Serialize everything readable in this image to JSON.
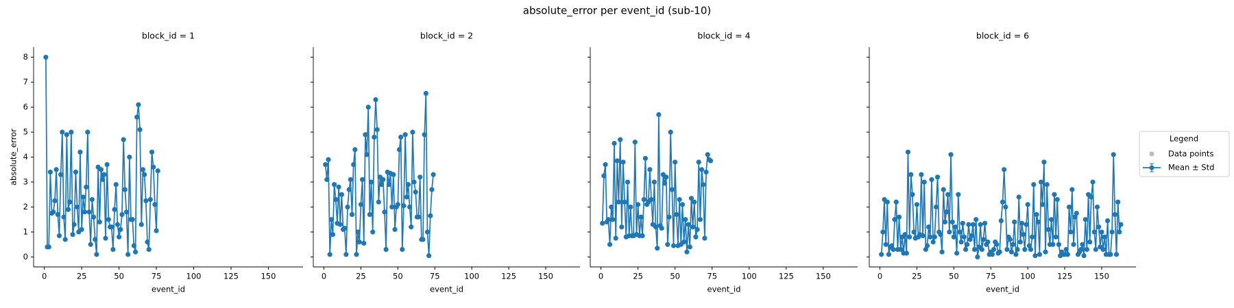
{
  "figure": {
    "title": "absolute_error per event_id (sub-10)",
    "legend": {
      "title": "Legend",
      "entries": [
        "Data points",
        "Mean ± Std"
      ],
      "corner": "right",
      "point_color": "#bbbbbb"
    }
  },
  "chart_data": [
    {
      "type": "line",
      "title": "block_id = 1",
      "xlabel": "event_id",
      "ylabel": "absolute_error",
      "x": [
        1,
        2,
        3,
        4,
        5,
        6,
        7,
        8,
        9,
        10,
        11,
        12,
        13,
        14,
        15,
        16,
        17,
        18,
        19,
        20,
        21,
        22,
        23,
        24,
        25,
        26,
        27,
        28,
        29,
        30,
        31,
        32,
        33,
        34,
        35,
        36,
        37,
        38,
        39,
        40,
        41,
        42,
        43,
        44,
        45,
        46,
        47,
        48,
        49,
        50,
        51,
        52,
        53,
        54,
        55,
        56,
        57,
        58,
        59,
        60,
        61,
        62,
        63,
        64,
        65,
        66,
        67,
        68,
        69,
        70,
        71,
        72,
        73,
        74,
        75,
        76
      ],
      "series": [
        {
          "color": "#1f77b4",
          "values": [
            8.0,
            0.4,
            0.4,
            3.4,
            1.75,
            1.8,
            2.25,
            3.5,
            1.7,
            0.85,
            3.3,
            5.0,
            1.6,
            0.7,
            4.9,
            1.9,
            2.2,
            5.0,
            0.9,
            1.3,
            3.4,
            2.0,
            1.0,
            4.2,
            1.1,
            2.4,
            1.8,
            2.8,
            5.0,
            1.8,
            0.5,
            2.3,
            1.6,
            0.7,
            0.1,
            3.6,
            1.4,
            3.5,
            3.1,
            3.3,
            0.75,
            3.7,
            1.5,
            1.2,
            1.2,
            0.3,
            1.9,
            2.9,
            1.3,
            0.8,
            1.1,
            1.7,
            4.7,
            2.7,
            1.8,
            0.1,
            4.0,
            1.5,
            1.5,
            0.45,
            0.2,
            5.6,
            6.1,
            5.1,
            1.3,
            3.5,
            3.3,
            2.25,
            0.6,
            0.3,
            2.3,
            4.2,
            3.6,
            2.1,
            1.05,
            3.45
          ]
        }
      ],
      "xlim": [
        -7.2,
        173.2
      ],
      "ylim": [
        -0.4,
        8.4
      ],
      "xticks": [
        0,
        25,
        50,
        75,
        100,
        125,
        150
      ],
      "yticks": [
        0,
        1,
        2,
        3,
        4,
        5,
        6,
        7,
        8
      ]
    },
    {
      "type": "line",
      "title": "block_id = 2",
      "xlabel": "event_id",
      "x": [
        1,
        2,
        3,
        4,
        5,
        6,
        7,
        8,
        9,
        10,
        11,
        12,
        13,
        14,
        15,
        16,
        17,
        18,
        19,
        20,
        21,
        22,
        23,
        24,
        25,
        26,
        27,
        28,
        29,
        30,
        31,
        32,
        33,
        34,
        35,
        36,
        37,
        38,
        39,
        40,
        41,
        42,
        43,
        44,
        45,
        46,
        47,
        48,
        49,
        50,
        51,
        52,
        53,
        54,
        55,
        56,
        57,
        58,
        59,
        60,
        61,
        62,
        63,
        64,
        65,
        66,
        67,
        68,
        69,
        70,
        71,
        72,
        73,
        74
      ],
      "series": [
        {
          "color": "#1f77b4",
          "values": [
            3.7,
            3.1,
            3.9,
            0.1,
            1.5,
            0.9,
            2.9,
            2.3,
            1.35,
            2.8,
            1.3,
            2.5,
            1.1,
            1.15,
            0.1,
            2.0,
            2.7,
            3.1,
            1.7,
            3.7,
            4.3,
            0.1,
            1.0,
            0.6,
            2.1,
            3.1,
            0.55,
            4.9,
            4.1,
            6.0,
            1.7,
            3.0,
            1.0,
            4.8,
            6.3,
            5.1,
            2.2,
            3.2,
            2.9,
            3.1,
            1.8,
            0.3,
            3.4,
            2.9,
            3.35,
            2.0,
            3.3,
            1.1,
            2.0,
            2.1,
            4.3,
            4.8,
            0.3,
            2.05,
            4.9,
            2.4,
            2.9,
            2.0,
            1.2,
            5.0,
            3.0,
            2.6,
            1.6,
            1.6,
            3.2,
            0.7,
            0.7,
            4.9,
            6.55,
            1.0,
            0.05,
            1.65,
            2.7,
            3.3
          ]
        }
      ],
      "xlim": [
        -7.2,
        173.2
      ],
      "ylim": [
        -0.4,
        8.4
      ],
      "xticks": [
        0,
        25,
        50,
        75,
        100,
        125,
        150
      ],
      "yticks": [
        0,
        1,
        2,
        3,
        4,
        5,
        6,
        7,
        8
      ]
    },
    {
      "type": "line",
      "title": "block_id = 4",
      "xlabel": "event_id",
      "x": [
        1,
        2,
        3,
        4,
        5,
        6,
        7,
        8,
        9,
        10,
        11,
        12,
        13,
        14,
        15,
        16,
        17,
        18,
        19,
        20,
        21,
        22,
        23,
        24,
        25,
        26,
        27,
        28,
        29,
        30,
        31,
        32,
        33,
        34,
        35,
        36,
        37,
        38,
        39,
        40,
        41,
        42,
        43,
        44,
        45,
        46,
        47,
        48,
        49,
        50,
        51,
        52,
        53,
        54,
        55,
        56,
        57,
        58,
        59,
        60,
        61,
        62,
        63,
        64,
        65,
        66,
        67,
        68,
        69,
        70,
        71,
        72,
        73,
        74
      ],
      "series": [
        {
          "color": "#1f77b4",
          "values": [
            1.35,
            3.25,
            3.7,
            1.4,
            1.5,
            0.5,
            2.0,
            1.5,
            4.55,
            0.75,
            3.85,
            2.2,
            4.7,
            1.2,
            3.8,
            2.2,
            0.8,
            3.0,
            0.85,
            2.0,
            0.85,
            0.85,
            4.6,
            0.9,
            2.1,
            0.85,
            1.6,
            0.85,
            2.3,
            3.95,
            2.1,
            2.2,
            3.5,
            2.3,
            1.3,
            3.0,
            1.2,
            0.35,
            5.7,
            1.25,
            1.15,
            3.3,
            2.95,
            3.2,
            0.5,
            1.6,
            5.0,
            2.7,
            0.45,
            3.8,
            1.7,
            0.45,
            2.3,
            0.5,
            2.1,
            0.6,
            1.5,
            0.2,
            1.3,
            0.4,
            2.35,
            1.2,
            2.2,
            0.8,
            1.1,
            3.8,
            1.5,
            3.5,
            2.9,
            0.75,
            3.4,
            4.1,
            3.9,
            3.85
          ]
        }
      ],
      "xlim": [
        -7.2,
        173.2
      ],
      "ylim": [
        -0.4,
        8.4
      ],
      "xticks": [
        0,
        25,
        50,
        75,
        100,
        125,
        150
      ],
      "yticks": [
        0,
        1,
        2,
        3,
        4,
        5,
        6,
        7,
        8
      ]
    },
    {
      "type": "line",
      "title": "block_id = 6",
      "xlabel": "event_id",
      "x": [
        1,
        2,
        3,
        4,
        5,
        6,
        7,
        8,
        9,
        10,
        11,
        12,
        13,
        14,
        15,
        16,
        17,
        18,
        19,
        20,
        21,
        22,
        23,
        24,
        25,
        26,
        27,
        28,
        29,
        30,
        31,
        32,
        33,
        34,
        35,
        36,
        37,
        38,
        39,
        40,
        41,
        42,
        43,
        44,
        45,
        46,
        47,
        48,
        49,
        50,
        51,
        52,
        53,
        54,
        55,
        56,
        57,
        58,
        59,
        60,
        61,
        62,
        63,
        64,
        65,
        66,
        67,
        68,
        69,
        70,
        71,
        72,
        73,
        74,
        75,
        76,
        77,
        78,
        79,
        80,
        81,
        82,
        83,
        84,
        85,
        86,
        87,
        88,
        89,
        90,
        91,
        92,
        93,
        94,
        95,
        96,
        97,
        98,
        99,
        100,
        101,
        102,
        103,
        104,
        105,
        106,
        107,
        108,
        109,
        110,
        111,
        112,
        113,
        114,
        115,
        116,
        117,
        118,
        119,
        120,
        121,
        122,
        123,
        124,
        125,
        126,
        127,
        128,
        129,
        130,
        131,
        132,
        133,
        134,
        135,
        136,
        137,
        138,
        139,
        140,
        141,
        142,
        143,
        144,
        145,
        146,
        147,
        148,
        149,
        150,
        151,
        152,
        153,
        154,
        155,
        156,
        157,
        158,
        159,
        160,
        161,
        162,
        163
      ],
      "series": [
        {
          "color": "#1f77b4",
          "values": [
            0.1,
            1.0,
            2.3,
            0.5,
            2.2,
            0.1,
            0.4,
            0.45,
            0.3,
            1.5,
            2.2,
            0.3,
            1.6,
            0.3,
            0.8,
            0.15,
            0.9,
            0.15,
            4.2,
            0.8,
            3.3,
            2.5,
            1.0,
            0.75,
            2.1,
            0.8,
            0.9,
            3.3,
            0.85,
            3.0,
            0.3,
            0.45,
            1.2,
            0.8,
            3.1,
            0.6,
            0.8,
            2.0,
            3.2,
            1.0,
            0.9,
            0.2,
            2.7,
            1.4,
            1.8,
            2.5,
            1.0,
            4.1,
            1.4,
            0.8,
            1.2,
            0.15,
            2.5,
            1.0,
            0.6,
            1.35,
            0.8,
            0.3,
            0.5,
            1.3,
            0.7,
            0.85,
            1.3,
            0.3,
            1.5,
            0.0,
            0.4,
            1.3,
            0.3,
            0.7,
            1.35,
            0.5,
            0.6,
            0.1,
            0.2,
            0.1,
            0.3,
            0.6,
            0.5,
            0.15,
            0.2,
            1.45,
            2.2,
            3.5,
            2.0,
            0.3,
            0.8,
            0.7,
            0.2,
            0.5,
            1.4,
            0.1,
            0.3,
            2.4,
            0.6,
            1.35,
            0.9,
            0.3,
            1.3,
            2.1,
            0.45,
            0.3,
            0.8,
            2.9,
            0.05,
            1.7,
            1.4,
            0.1,
            3.0,
            2.1,
            3.8,
            0.2,
            2.9,
            1.1,
            0.5,
            1.5,
            0.5,
            2.5,
            0.8,
            2.3,
            0.5,
            0.05,
            0.2,
            0.1,
            0.1,
            0.3,
            0.1,
            2.0,
            1.0,
            2.7,
            0.5,
            1.6,
            1.75,
            0.1,
            0.2,
            0.3,
            0.5,
            0.05,
            1.5,
            0.3,
            2.5,
            0.6,
            2.4,
            3.0,
            1.0,
            0.3,
            2.0,
            1.2,
            0.4,
            1.0,
            0.3,
            0.8,
            0.1,
            1.45,
            0.1,
            0.1,
            1.0,
            4.1,
            1.7,
            0.1,
            2.2,
            1.0,
            1.3
          ]
        }
      ],
      "xlim": [
        -7.2,
        173.2
      ],
      "ylim": [
        -0.4,
        8.4
      ],
      "xticks": [
        0,
        25,
        50,
        75,
        100,
        125,
        150
      ],
      "yticks": [
        0,
        1,
        2,
        3,
        4,
        5,
        6,
        7,
        8
      ]
    }
  ]
}
